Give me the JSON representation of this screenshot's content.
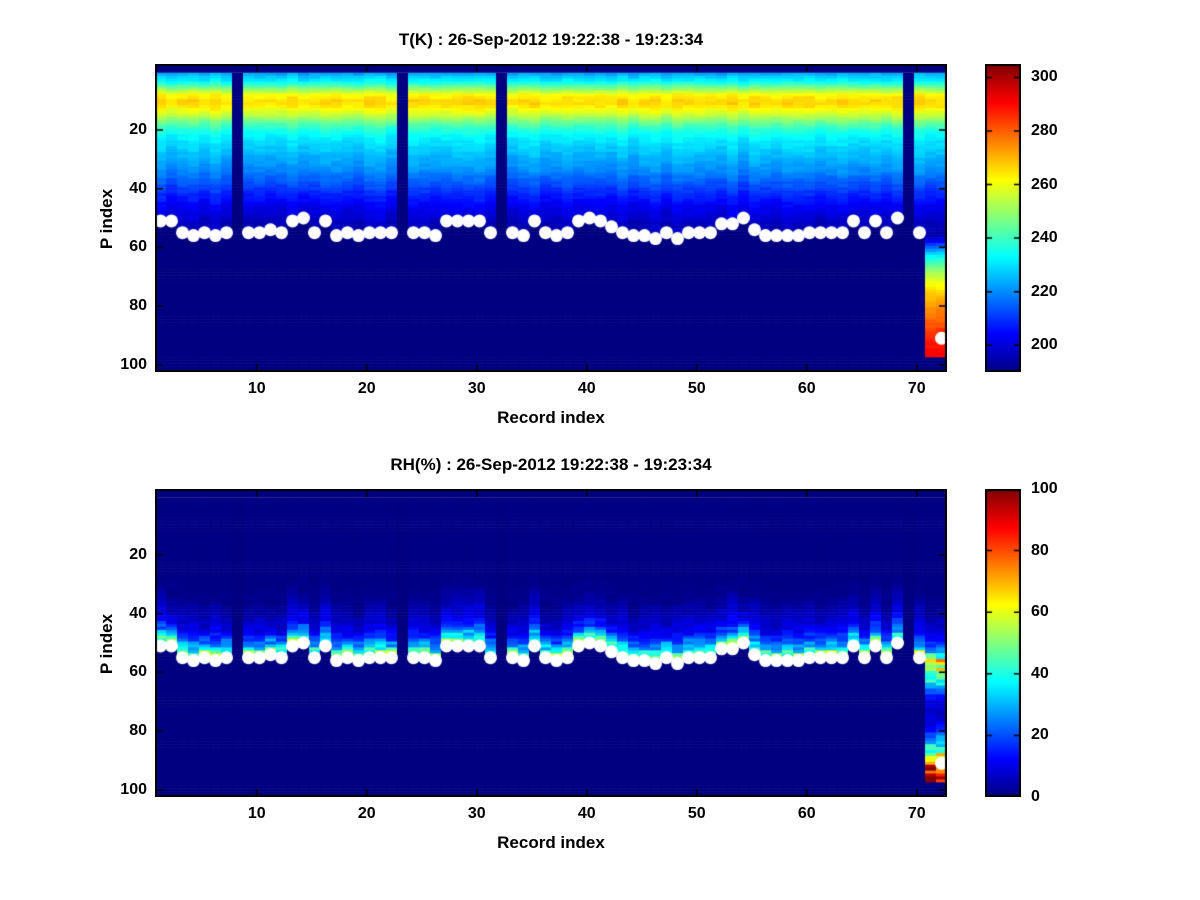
{
  "figure": {
    "background": "#ffffff",
    "marker_color": "#ffffff",
    "axis_color": "#000000"
  },
  "chart_data": [
    {
      "type": "heatmap",
      "id": "temperature",
      "title": "T(K) : 26-Sep-2012 19:22:38 - 19:23:34",
      "xlabel": "Record index",
      "ylabel": "P index",
      "x_ticks": [
        10,
        20,
        30,
        40,
        50,
        60,
        70
      ],
      "y_ticks": [
        20,
        40,
        60,
        80,
        100
      ],
      "y_axis_reversed": true,
      "grid": false,
      "colormap": "jet",
      "clim": [
        190,
        305
      ],
      "colorbar_ticks": [
        200,
        220,
        240,
        260,
        280,
        300
      ],
      "n_records": 72,
      "p_range": [
        1,
        101
      ],
      "missing_records": [
        8,
        23,
        32,
        69
      ],
      "deep_records": [
        71,
        72
      ],
      "deep_max_p": 97,
      "profile_mode": "absolute",
      "profile_breakpoints": [
        [
          1,
          224
        ],
        [
          2,
          228
        ],
        [
          3,
          231
        ],
        [
          4,
          236
        ],
        [
          5,
          243
        ],
        [
          6,
          249
        ],
        [
          7,
          255
        ],
        [
          8,
          262
        ],
        [
          9,
          264
        ],
        [
          10,
          266
        ],
        [
          11,
          266
        ],
        [
          12,
          264
        ],
        [
          13,
          261
        ],
        [
          14,
          258
        ],
        [
          15,
          255
        ],
        [
          16,
          251
        ],
        [
          17,
          247
        ],
        [
          18,
          243
        ],
        [
          19,
          240
        ],
        [
          20,
          237
        ],
        [
          22,
          233
        ],
        [
          24,
          230
        ],
        [
          26,
          228
        ],
        [
          28,
          226
        ],
        [
          30,
          224
        ],
        [
          32,
          222
        ],
        [
          34,
          220
        ],
        [
          36,
          217
        ],
        [
          38,
          214
        ],
        [
          40,
          211
        ],
        [
          42,
          208
        ],
        [
          44,
          206
        ],
        [
          46,
          203
        ],
        [
          48,
          201
        ],
        [
          50,
          199
        ],
        [
          52,
          197
        ],
        [
          54,
          196
        ],
        [
          57,
          194
        ]
      ],
      "deep_breakpoints": [
        [
          57.5,
          200
        ],
        [
          58,
          204
        ],
        [
          60,
          217
        ],
        [
          62,
          228
        ],
        [
          64,
          237
        ],
        [
          66,
          244
        ],
        [
          68,
          250
        ],
        [
          70,
          255
        ],
        [
          73,
          262
        ],
        [
          76,
          268
        ],
        [
          80,
          274
        ],
        [
          84,
          279
        ],
        [
          88,
          284
        ],
        [
          92,
          288
        ],
        [
          97,
          292
        ]
      ],
      "surface_p": [
        51,
        51,
        55,
        56,
        55,
        56,
        55,
        null,
        55,
        55,
        54,
        55,
        51,
        50,
        55,
        51,
        56,
        55,
        56,
        55,
        55,
        55,
        null,
        55,
        55,
        56,
        51,
        51,
        51,
        51,
        55,
        null,
        55,
        56,
        51,
        55,
        56,
        55,
        51,
        50,
        51,
        53,
        55,
        56,
        56,
        57,
        55,
        57,
        55,
        55,
        55,
        52,
        52,
        50,
        54,
        56,
        56,
        56,
        56,
        55,
        55,
        55,
        55,
        51,
        55,
        51,
        55,
        50,
        null,
        55,
        null,
        91
      ]
    },
    {
      "type": "heatmap",
      "id": "relative-humidity",
      "title": "RH(%) : 26-Sep-2012 19:22:38 - 19:23:34",
      "xlabel": "Record index",
      "ylabel": "P index",
      "x_ticks": [
        10,
        20,
        30,
        40,
        50,
        60,
        70
      ],
      "y_ticks": [
        20,
        40,
        60,
        80,
        100
      ],
      "y_axis_reversed": true,
      "grid": false,
      "colormap": "jet",
      "clim": [
        0,
        100
      ],
      "colorbar_ticks": [
        0,
        20,
        40,
        60,
        80,
        100
      ],
      "n_records": 72,
      "p_range": [
        1,
        101
      ],
      "missing_records": [
        8,
        23,
        32,
        69
      ],
      "deep_records": [
        71,
        72
      ],
      "deep_max_p": 97,
      "profile_mode": "relative_to_surface",
      "profile_breakpoints": [
        [
          0,
          55
        ],
        [
          1,
          62
        ],
        [
          2,
          48
        ],
        [
          3,
          38
        ],
        [
          4,
          31
        ],
        [
          5,
          26
        ],
        [
          6,
          21
        ],
        [
          7,
          17
        ],
        [
          8,
          14
        ],
        [
          10,
          10
        ],
        [
          12,
          7.5
        ],
        [
          14,
          5.5
        ],
        [
          16,
          4
        ],
        [
          18,
          2.5
        ],
        [
          21,
          1.2
        ],
        [
          25,
          0.5
        ],
        [
          60,
          0.3
        ]
      ],
      "deep_breakpoints": [
        [
          57,
          55
        ],
        [
          58,
          58
        ],
        [
          60,
          52
        ],
        [
          62,
          42
        ],
        [
          64,
          36
        ],
        [
          66,
          25
        ],
        [
          68,
          14
        ],
        [
          70,
          9
        ],
        [
          73,
          7
        ],
        [
          76,
          8
        ],
        [
          79,
          13
        ],
        [
          81,
          20
        ],
        [
          83,
          30
        ],
        [
          85,
          40
        ],
        [
          87,
          50
        ],
        [
          89,
          62
        ],
        [
          90,
          70
        ],
        [
          91,
          78
        ],
        [
          92,
          85
        ],
        [
          93,
          91
        ],
        [
          94,
          96
        ],
        [
          97,
          99
        ]
      ],
      "surface_p": [
        51,
        51,
        55,
        56,
        55,
        56,
        55,
        null,
        55,
        55,
        54,
        55,
        51,
        50,
        55,
        51,
        56,
        55,
        56,
        55,
        55,
        55,
        null,
        55,
        55,
        56,
        51,
        51,
        51,
        51,
        55,
        null,
        55,
        56,
        51,
        55,
        56,
        55,
        51,
        50,
        51,
        53,
        55,
        56,
        56,
        57,
        55,
        57,
        55,
        55,
        55,
        52,
        52,
        50,
        54,
        56,
        56,
        56,
        56,
        55,
        55,
        55,
        55,
        51,
        55,
        51,
        55,
        50,
        null,
        55,
        null,
        91
      ]
    }
  ]
}
